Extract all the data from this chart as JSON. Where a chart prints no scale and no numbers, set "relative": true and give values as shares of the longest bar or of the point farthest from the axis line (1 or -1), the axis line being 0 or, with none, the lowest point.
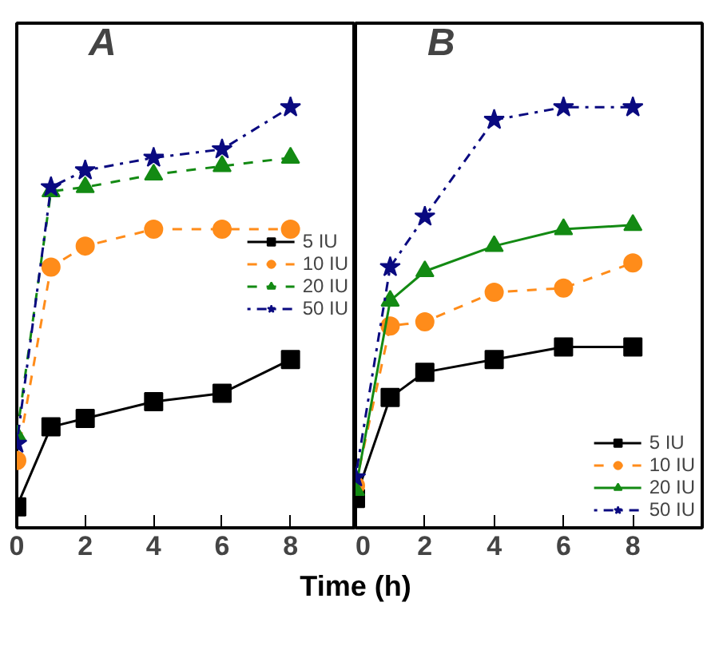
{
  "chart_data": [
    {
      "type": "line",
      "relative": true,
      "annotations": [
        {
          "text": "A"
        }
      ],
      "x": [
        0,
        1,
        2,
        4,
        6,
        8
      ],
      "xlim": [
        0,
        9.9
      ],
      "xticks": [
        0,
        2,
        4,
        6,
        8
      ],
      "legend": "right",
      "grid": false,
      "series": [
        {
          "name": "5 IU",
          "color": "#000000",
          "marker": "square",
          "line_style": "solid",
          "values": [
            0.05,
            0.24,
            0.26,
            0.3,
            0.32,
            0.4
          ]
        },
        {
          "name": "10 IU",
          "color": "#ff8c1a",
          "marker": "circle",
          "line_style": "dashed",
          "values": [
            0.16,
            0.62,
            0.67,
            0.71,
            0.71,
            0.71
          ]
        },
        {
          "name": "20 IU",
          "color": "#138a13",
          "marker": "triangle",
          "line_style": "dashed",
          "values": [
            0.22,
            0.8,
            0.81,
            0.84,
            0.86,
            0.88
          ]
        },
        {
          "name": "50 IU",
          "color": "#0a0a80",
          "marker": "star",
          "line_style": "dotted",
          "values": [
            0.2,
            0.81,
            0.85,
            0.88,
            0.9,
            1.0
          ]
        }
      ]
    },
    {
      "type": "line",
      "relative": true,
      "annotations": [
        {
          "text": "B"
        }
      ],
      "xlabel": "Time (h)",
      "x": [
        0,
        1,
        2,
        4,
        6,
        8
      ],
      "xlim": [
        0,
        10
      ],
      "xticks": [
        0,
        2,
        4,
        6,
        8
      ],
      "legend": "bottom right",
      "grid": false,
      "series": [
        {
          "name": "5 IU",
          "color": "#000000",
          "marker": "square",
          "line_style": "solid",
          "values": [
            0.07,
            0.31,
            0.37,
            0.4,
            0.43,
            0.43
          ]
        },
        {
          "name": "10 IU",
          "color": "#ff8c1a",
          "marker": "circle",
          "line_style": "dashed",
          "values": [
            0.1,
            0.48,
            0.49,
            0.56,
            0.57,
            0.63
          ]
        },
        {
          "name": "20 IU",
          "color": "#138a13",
          "marker": "triangle",
          "line_style": "solid",
          "values": [
            0.09,
            0.54,
            0.61,
            0.67,
            0.71,
            0.72
          ]
        },
        {
          "name": "50 IU",
          "color": "#0a0a80",
          "marker": "star",
          "line_style": "dotted",
          "values": [
            0.12,
            0.62,
            0.74,
            0.97,
            1.0,
            1.0
          ]
        }
      ]
    }
  ]
}
